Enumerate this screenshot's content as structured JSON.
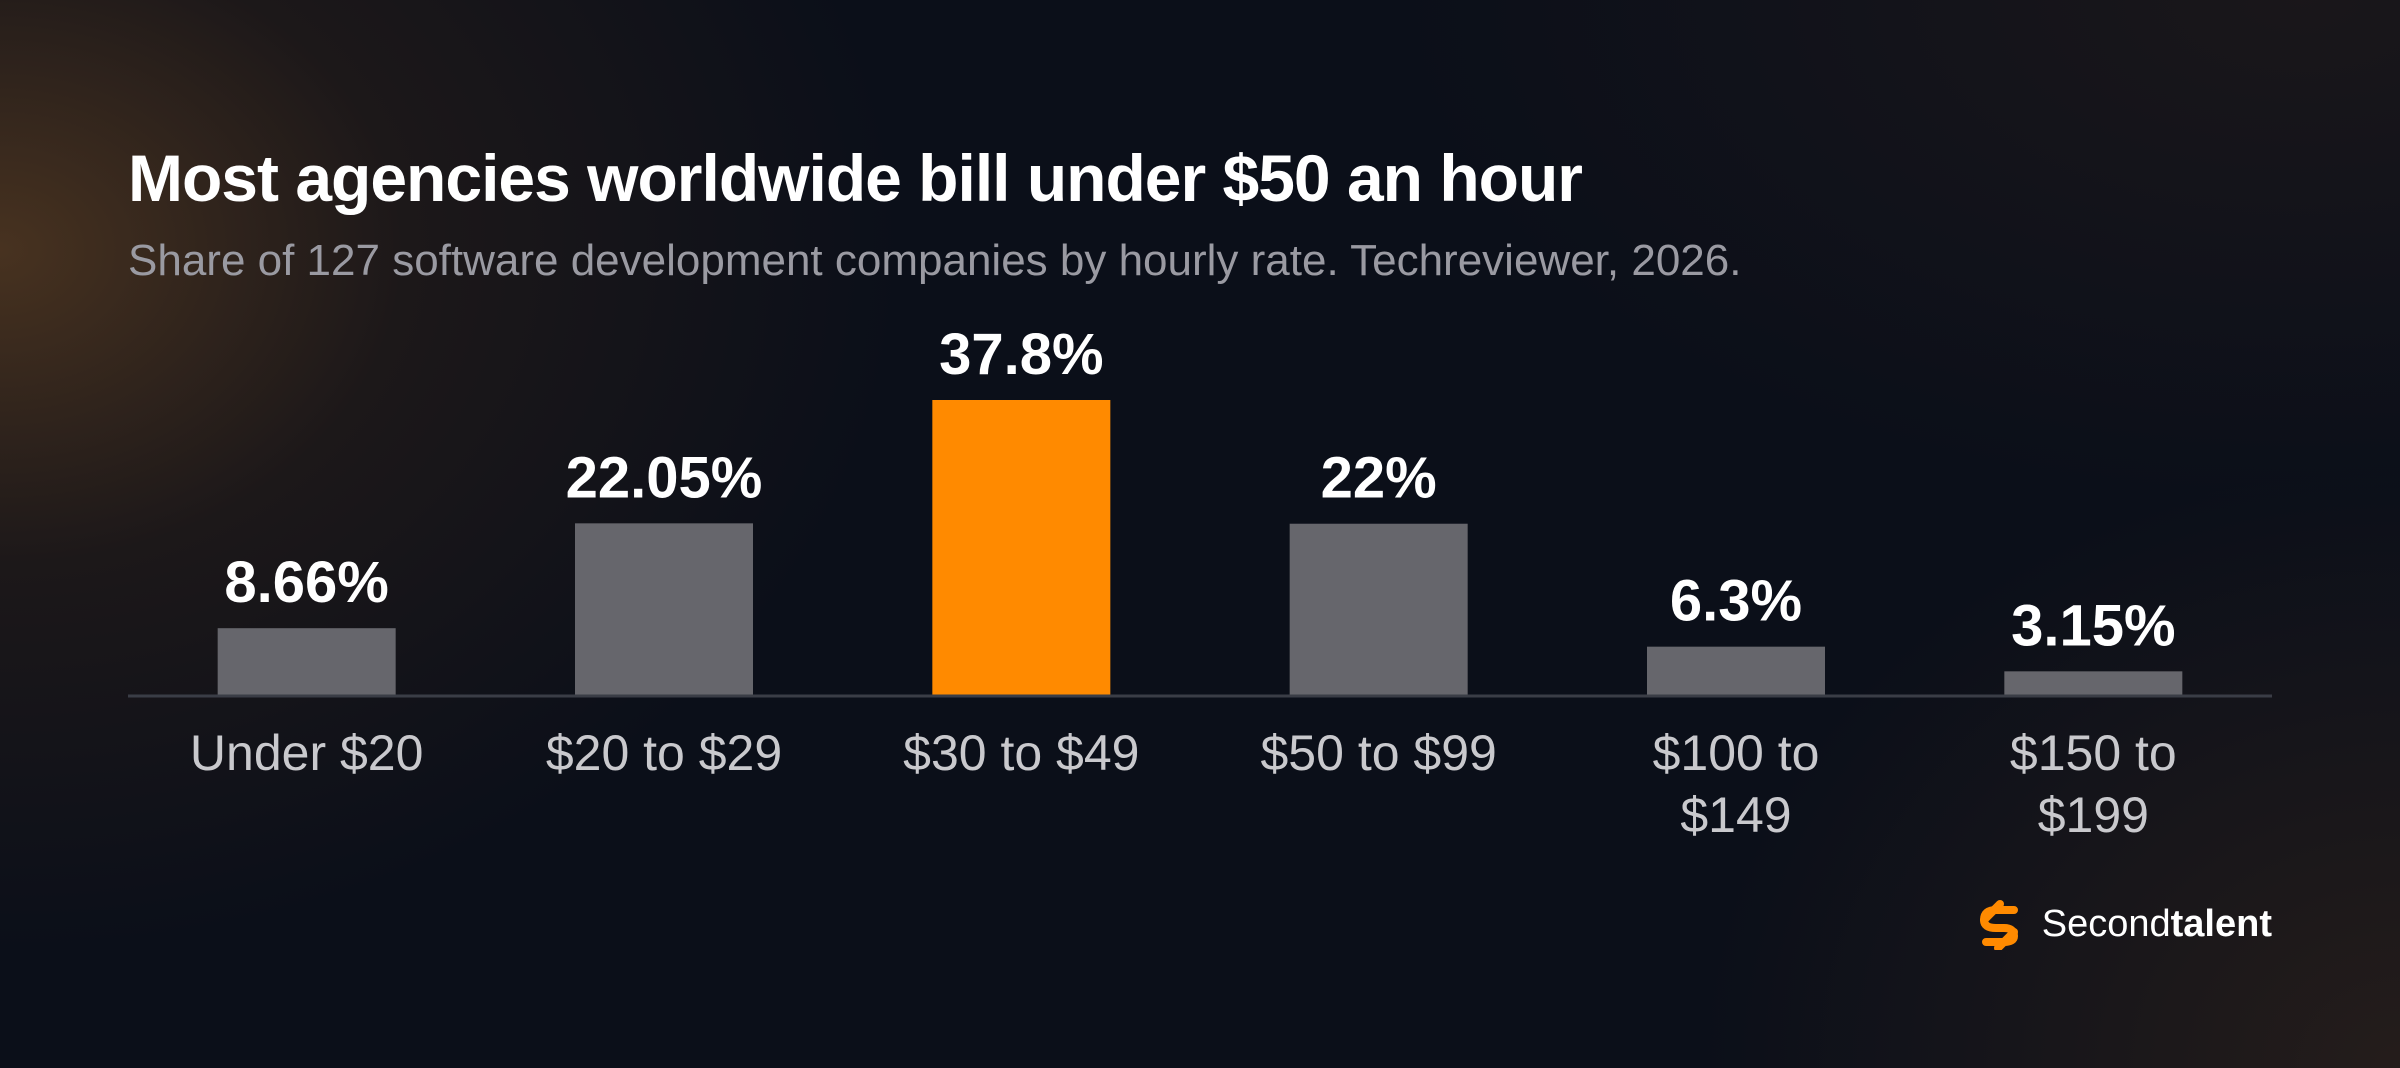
{
  "title": "Most agencies worldwide bill under $50 an hour",
  "subtitle": "Share of 127 software development companies by hourly rate. Techreviewer, 2026.",
  "brand": {
    "logo_icon": "secondtalent-s-logo-icon",
    "name_regular": "Second",
    "name_bold": "talent",
    "accent_color": "#FF8A00"
  },
  "colors": {
    "highlight": "#FF8A00",
    "bar_default": "#66666C",
    "baseline": "#3A3D46"
  },
  "chart_data": {
    "type": "bar",
    "title": "Most agencies worldwide bill under $50 an hour",
    "subtitle": "Share of 127 software development companies by hourly rate. Techreviewer, 2026.",
    "categories": [
      "Under $20",
      "$20 to $29",
      "$30 to $49",
      "$50 to $99",
      "$100 to $149",
      "$150 to $199"
    ],
    "category_lines": [
      [
        "Under $20"
      ],
      [
        "$20 to $29"
      ],
      [
        "$30 to $49"
      ],
      [
        "$50 to $99"
      ],
      [
        "$100 to",
        "$149"
      ],
      [
        "$150 to",
        "$199"
      ]
    ],
    "values": [
      8.66,
      22.05,
      37.8,
      22,
      6.3,
      3.15
    ],
    "value_labels": [
      "8.66%",
      "22.05%",
      "37.8%",
      "22%",
      "6.3%",
      "3.15%"
    ],
    "highlight_index": 2,
    "xlabel": "",
    "ylabel": "",
    "ylim": [
      0,
      37.8
    ],
    "grid": false,
    "legend": "none"
  }
}
